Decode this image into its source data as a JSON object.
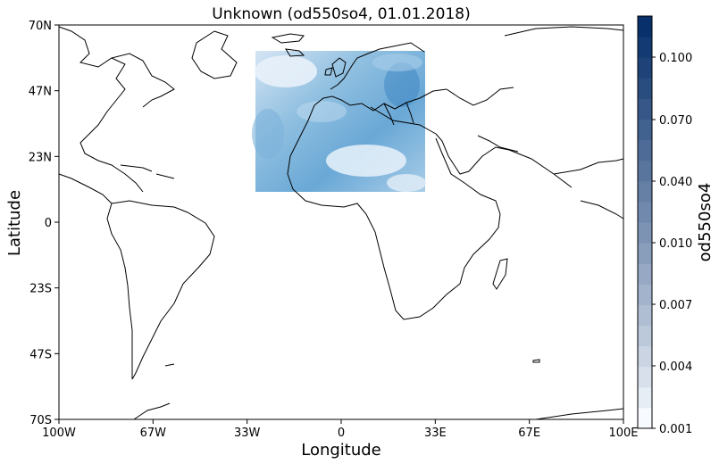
{
  "title": "Unknown (od550so4, 01.01.2018)",
  "map": {
    "xlabel": "Longitude",
    "ylabel": "Latitude",
    "x_ticks": [
      "100W",
      "67W",
      "33W",
      "0",
      "33E",
      "67E",
      "100E"
    ],
    "y_ticks": [
      "70N",
      "47N",
      "23N",
      "0",
      "23S",
      "47S",
      "70S"
    ],
    "lon_range": [
      -100,
      100
    ],
    "lat_range": [
      -70,
      70
    ],
    "data_extent": {
      "lon": [
        -30,
        30
      ],
      "lat": [
        10,
        60
      ]
    },
    "colormap": "Blues"
  },
  "colorbar": {
    "label": "od550so4",
    "tick_labels": [
      "0.100",
      "0.070",
      "0.040",
      "0.010",
      "0.007",
      "0.004",
      "0.001"
    ],
    "bins": 20
  }
}
